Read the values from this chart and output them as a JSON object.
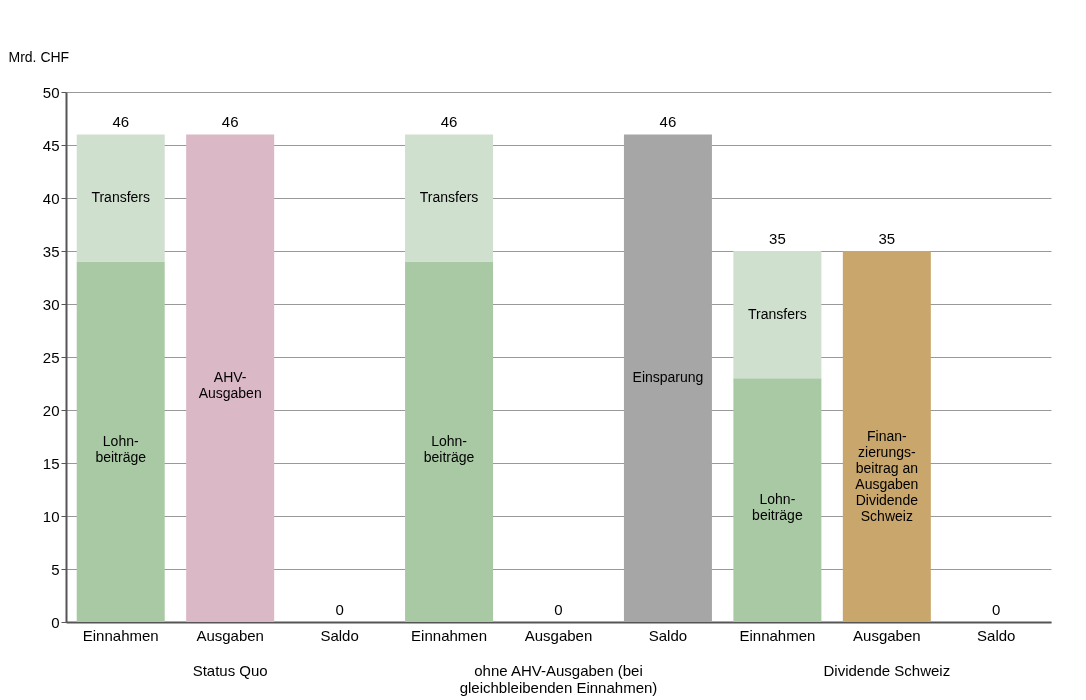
{
  "chart_data": {
    "type": "bar",
    "stacked": true,
    "ylabel": "Mrd. CHF",
    "categories": [
      "Einnahmen",
      "Ausgaben",
      "Saldo",
      "Einnahmen",
      "Ausgaben",
      "Saldo",
      "Einnahmen",
      "Ausgaben",
      "Saldo"
    ],
    "annotations": [
      "Status Quo",
      "ohne AHV-Ausgaben (bei\ngleichbleibenden Einnahmen)",
      "Dividende Schweiz"
    ],
    "series": [
      {
        "name": "Lohn-\nbeiträge",
        "color": "#a9c9a4",
        "values": [
          34,
          null,
          null,
          34,
          null,
          null,
          23,
          null,
          null
        ]
      },
      {
        "name": "Transfers",
        "color": "#cfe0cf",
        "values": [
          12,
          null,
          null,
          12,
          null,
          null,
          12,
          null,
          null
        ]
      },
      {
        "name": "AHV-\nAusgaben",
        "color": "#dbb8c6",
        "values": [
          null,
          46,
          null,
          null,
          null,
          null,
          null,
          null,
          null
        ]
      },
      {
        "name": "Einsparung",
        "color": "#a6a6a6",
        "values": [
          null,
          null,
          null,
          null,
          null,
          46,
          null,
          null,
          null
        ]
      },
      {
        "name": "Finan-\nzierungs-\nbeitrag an\nAusgaben\nDividende\nSchweiz",
        "color": "#c9a66b",
        "values": [
          null,
          null,
          null,
          null,
          null,
          null,
          null,
          35,
          null
        ]
      }
    ],
    "totals": [
      "46",
      "46",
      "0",
      "46",
      "0",
      "46",
      "35",
      "35",
      "0"
    ],
    "ylim": [
      0,
      50
    ],
    "yticks": [
      0,
      5,
      10,
      15,
      20,
      25,
      30,
      35,
      40,
      45,
      50
    ],
    "grid": "y"
  }
}
